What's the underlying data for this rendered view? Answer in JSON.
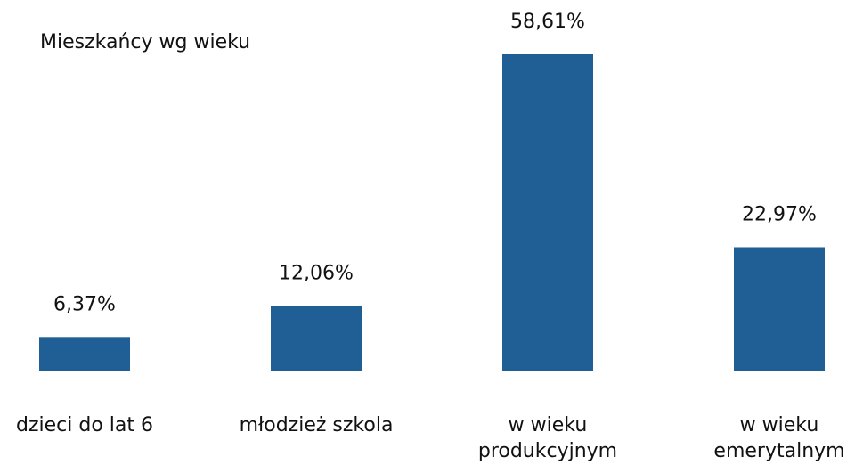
{
  "chart_data": {
    "type": "bar",
    "title": "Mieszkańcy wg wieku",
    "categories": [
      "dzieci do lat 6",
      "młodzież szkola",
      "w wieku produkcyjnym",
      "w wieku emerytalnym"
    ],
    "values": [
      6.37,
      12.06,
      58.61,
      22.97
    ],
    "value_labels": [
      "6,37%",
      "12,06%",
      "58,61%",
      "22,97%"
    ],
    "color": "#1f5f96"
  }
}
